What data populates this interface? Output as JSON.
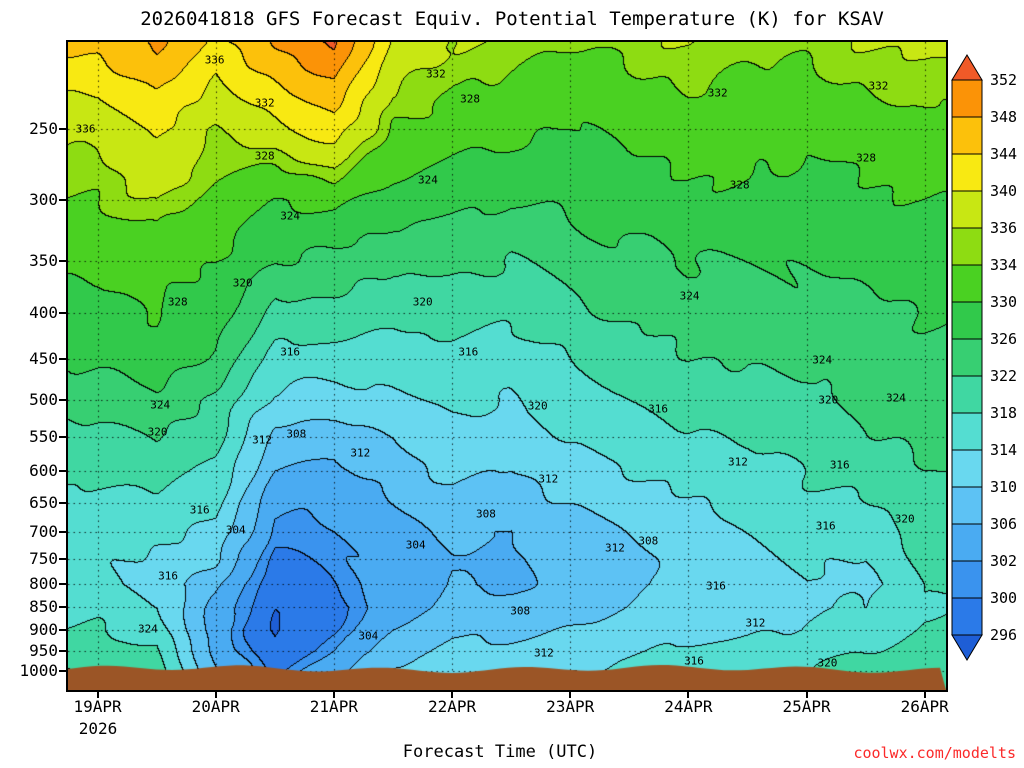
{
  "watermark": "coolwx.com/modelts",
  "chart_data": {
    "type": "heatmap",
    "subtype": "filled-contour-time-height-cross-section",
    "title": "2026041818 GFS Forecast Equiv. Potential Temperature (K) for KSAV",
    "xlabel": "Forecast Time (UTC)",
    "x_year_label": "2026",
    "x_tick_labels": [
      "19APR",
      "20APR",
      "21APR",
      "22APR",
      "23APR",
      "24APR",
      "25APR",
      "26APR"
    ],
    "x_tick_days": [
      19,
      20,
      21,
      22,
      23,
      24,
      25,
      26
    ],
    "y_tick_labels": [
      "250",
      "300",
      "350",
      "400",
      "450",
      "500",
      "550",
      "600",
      "650",
      "700",
      "750",
      "800",
      "850",
      "900",
      "950",
      "1000"
    ],
    "y_tick_pressures_hpa": [
      250,
      300,
      350,
      400,
      450,
      500,
      550,
      600,
      650,
      700,
      750,
      800,
      850,
      900,
      950,
      1000
    ],
    "x_range_days_april": [
      18.75,
      26.18
    ],
    "y_range_hpa": [
      200,
      1050
    ],
    "grid_lines": "dotted",
    "legend_position": "right-colorbar",
    "colorbar": {
      "tick_labels_top_to_bottom": [
        "352",
        "348",
        "344",
        "340",
        "336",
        "334",
        "330",
        "326",
        "322",
        "318",
        "314",
        "310",
        "306",
        "302",
        "300",
        "296"
      ],
      "levels_low_to_high": [
        296,
        300,
        302,
        306,
        310,
        314,
        318,
        322,
        326,
        330,
        334,
        336,
        340,
        344,
        348,
        352
      ],
      "colors_low_to_high": [
        "#1e5ed6",
        "#2b7ae8",
        "#3a93ee",
        "#4aabf2",
        "#5dc2f4",
        "#69d8ef",
        "#54ddd1",
        "#40d7a2",
        "#37cf72",
        "#31c94b",
        "#4ad122",
        "#8edc12",
        "#c8e713",
        "#f8e912",
        "#fcc10b",
        "#fb9307",
        "#f05a28"
      ]
    },
    "ground_color": "#9b5526",
    "grid": {
      "pressure_levels_hpa": [
        200,
        250,
        300,
        350,
        400,
        450,
        500,
        550,
        600,
        650,
        700,
        750,
        800,
        850,
        900,
        950,
        1000
      ],
      "time_days_april": [
        19,
        19.5,
        20,
        20.5,
        21,
        21.5,
        22,
        22.5,
        23,
        23.5,
        24,
        24.5,
        25,
        25.5,
        26
      ],
      "values_K": [
        [
          345,
          349,
          343,
          348,
          353,
          339,
          336,
          335,
          334,
          335,
          336,
          335,
          335,
          336,
          337
        ],
        [
          337,
          341,
          336,
          339,
          342,
          334,
          332,
          331,
          330,
          331,
          332,
          332,
          331,
          332,
          333
        ],
        [
          334,
          336,
          333,
          330,
          331,
          328,
          327,
          326,
          327,
          328,
          329,
          329,
          328,
          329,
          330
        ],
        [
          331,
          332,
          330,
          326,
          325,
          323,
          323,
          322,
          324,
          325,
          326,
          326,
          326,
          327,
          328
        ],
        [
          329,
          330,
          328,
          321,
          321,
          319,
          320,
          319,
          321,
          323,
          324,
          324,
          325,
          325,
          326
        ],
        [
          327,
          328,
          325,
          317,
          316,
          316,
          317,
          316,
          318,
          320,
          322,
          322,
          323,
          324,
          325
        ],
        [
          324,
          325,
          321,
          313,
          312,
          313,
          315,
          314,
          316,
          318,
          320,
          320,
          321,
          323,
          324
        ],
        [
          321,
          322,
          319,
          309,
          308,
          310,
          313,
          312,
          314,
          316,
          318,
          318,
          320,
          322,
          323
        ],
        [
          319,
          320,
          317,
          306,
          305,
          308,
          311,
          310,
          312,
          314,
          316,
          316,
          318,
          320,
          322
        ],
        [
          317,
          317,
          315,
          303,
          303,
          306,
          309,
          308,
          310,
          312,
          314,
          315,
          317,
          318,
          321
        ],
        [
          316,
          315,
          313,
          301,
          302,
          304,
          307,
          306,
          308,
          310,
          312,
          314,
          316,
          316,
          320
        ],
        [
          315,
          313,
          311,
          299,
          301,
          303,
          306,
          305,
          307,
          309,
          311,
          313,
          315,
          314,
          319
        ],
        [
          316,
          312,
          307,
          297,
          300,
          303,
          306,
          305,
          307,
          309,
          311,
          312,
          314,
          313,
          318
        ],
        [
          317,
          314,
          305,
          296,
          299,
          304,
          307,
          307,
          308,
          310,
          312,
          312,
          313,
          314,
          318
        ],
        [
          318,
          316,
          304,
          295,
          300,
          306,
          309,
          309,
          310,
          312,
          313,
          313,
          314,
          316,
          319
        ],
        [
          320,
          318,
          305,
          296,
          302,
          308,
          311,
          311,
          312,
          313,
          315,
          315,
          316,
          318,
          320
        ],
        [
          322,
          320,
          307,
          299,
          305,
          311,
          313,
          313,
          314,
          315,
          317,
          316,
          318,
          320,
          322
        ]
      ]
    },
    "contour_labels": [
      {
        "v": "336",
        "x": 2,
        "y": 13.4
      },
      {
        "v": "336",
        "x": 16.7,
        "y": 2.8
      },
      {
        "v": "332",
        "x": 22.4,
        "y": 9.4
      },
      {
        "v": "332",
        "x": 41.9,
        "y": 4.9
      },
      {
        "v": "328",
        "x": 45.8,
        "y": 8.8
      },
      {
        "v": "332",
        "x": 74,
        "y": 7.9
      },
      {
        "v": "332",
        "x": 92.3,
        "y": 6.8
      },
      {
        "v": "328",
        "x": 22.4,
        "y": 17.6
      },
      {
        "v": "328",
        "x": 76.5,
        "y": 22.1
      },
      {
        "v": "328",
        "x": 90.9,
        "y": 17.9
      },
      {
        "v": "324",
        "x": 41,
        "y": 21.3
      },
      {
        "v": "324",
        "x": 25.3,
        "y": 26.9
      },
      {
        "v": "320",
        "x": 19.9,
        "y": 37.2
      },
      {
        "v": "320",
        "x": 40.4,
        "y": 40.1
      },
      {
        "v": "324",
        "x": 70.8,
        "y": 39.2
      },
      {
        "v": "328",
        "x": 12.5,
        "y": 40.1
      },
      {
        "v": "316",
        "x": 25.3,
        "y": 47.8
      },
      {
        "v": "316",
        "x": 45.6,
        "y": 47.8
      },
      {
        "v": "324",
        "x": 85.9,
        "y": 49.1
      },
      {
        "v": "320",
        "x": 53.5,
        "y": 56.2
      },
      {
        "v": "320",
        "x": 86.6,
        "y": 55.2
      },
      {
        "v": "316",
        "x": 67.2,
        "y": 56.6
      },
      {
        "v": "324",
        "x": 94.3,
        "y": 54.9
      },
      {
        "v": "324",
        "x": 10.5,
        "y": 56
      },
      {
        "v": "320",
        "x": 10.2,
        "y": 60.2
      },
      {
        "v": "308",
        "x": 26,
        "y": 60.5
      },
      {
        "v": "312",
        "x": 22.1,
        "y": 61.4
      },
      {
        "v": "312",
        "x": 33.3,
        "y": 63.4
      },
      {
        "v": "316",
        "x": 87.9,
        "y": 65.3
      },
      {
        "v": "312",
        "x": 76.3,
        "y": 64.8
      },
      {
        "v": "308",
        "x": 47.6,
        "y": 72.8
      },
      {
        "v": "312",
        "x": 54.7,
        "y": 67.4
      },
      {
        "v": "316",
        "x": 11.4,
        "y": 82.4
      },
      {
        "v": "316",
        "x": 15,
        "y": 72.2
      },
      {
        "v": "304",
        "x": 19.1,
        "y": 75.3
      },
      {
        "v": "304",
        "x": 39.6,
        "y": 77.6
      },
      {
        "v": "308",
        "x": 66.1,
        "y": 77
      },
      {
        "v": "312",
        "x": 62.3,
        "y": 78.1
      },
      {
        "v": "316",
        "x": 86.3,
        "y": 74.7
      },
      {
        "v": "320",
        "x": 95.3,
        "y": 73.6
      },
      {
        "v": "312",
        "x": 78.3,
        "y": 89.7
      },
      {
        "v": "316",
        "x": 73.8,
        "y": 84
      },
      {
        "v": "324",
        "x": 9.1,
        "y": 90.6
      },
      {
        "v": "304",
        "x": 34.2,
        "y": 91.7
      },
      {
        "v": "308",
        "x": 51.5,
        "y": 87.8
      },
      {
        "v": "312",
        "x": 54.2,
        "y": 94.3
      },
      {
        "v": "316",
        "x": 71.3,
        "y": 95.5
      },
      {
        "v": "320",
        "x": 86.5,
        "y": 95.8
      }
    ]
  }
}
